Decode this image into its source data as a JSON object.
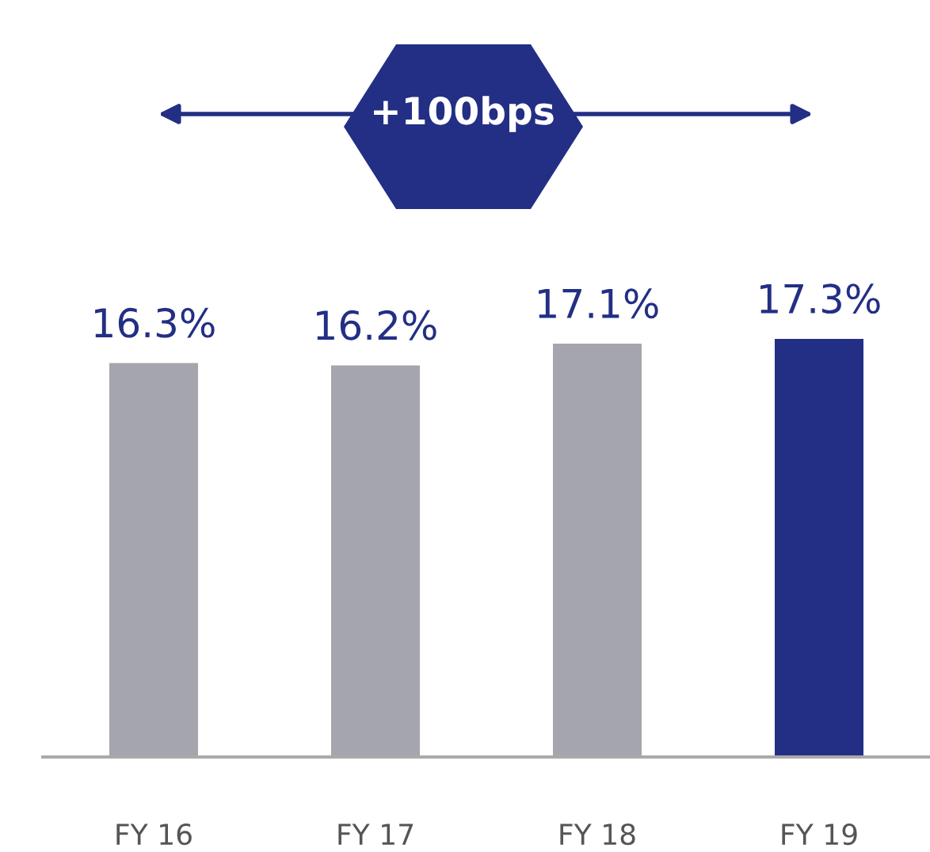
{
  "chart_data": {
    "type": "bar",
    "categories": [
      "FY 16",
      "FY 17",
      "FY 18",
      "FY 19"
    ],
    "values": [
      16.3,
      16.2,
      17.1,
      17.3
    ],
    "value_labels": [
      "16.3%",
      "16.2%",
      "17.1%",
      "17.3%"
    ],
    "colors": [
      "#a5a5ad",
      "#a5a5ad",
      "#a5a5ad",
      "#232f84"
    ],
    "annotations": [
      "+100bps"
    ],
    "grid": false,
    "legend": false,
    "tick_labels": "x"
  }
}
